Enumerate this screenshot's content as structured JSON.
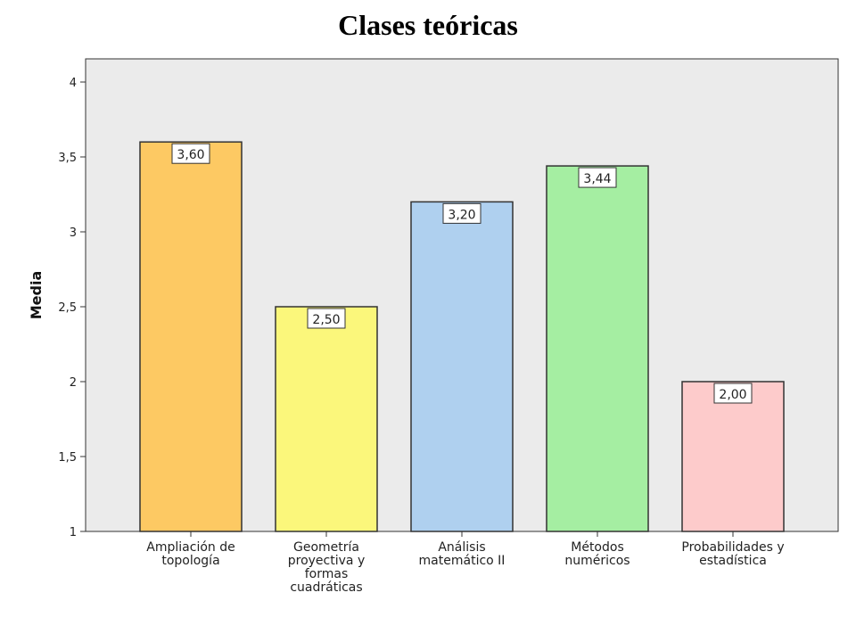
{
  "chart_data": {
    "type": "bar",
    "title": "Clases teóricas",
    "xlabel": "",
    "ylabel": "Media",
    "ylim": [
      1,
      4
    ],
    "yticks": [
      1,
      1.5,
      2,
      2.5,
      3,
      3.5,
      4
    ],
    "ytick_labels": [
      "1",
      "1,5",
      "2",
      "2,5",
      "3",
      "3,5",
      "4"
    ],
    "grid": false,
    "categories": [
      [
        "Ampliación de",
        "topología"
      ],
      [
        "Geometría",
        "proyectiva y",
        "formas",
        "cuadráticas"
      ],
      [
        "Análisis",
        "matemático II"
      ],
      [
        "Métodos",
        "numéricos"
      ],
      [
        "Probabilidades y",
        "estadística"
      ]
    ],
    "values": [
      3.6,
      2.5,
      3.2,
      3.44,
      2.0
    ],
    "value_labels": [
      "3,60",
      "2,50",
      "3,20",
      "3,44",
      "2,00"
    ],
    "colors": [
      "#fdc963",
      "#fbf77b",
      "#afd0ef",
      "#a5eea2",
      "#fdcbcb"
    ],
    "plot_background": "#ebebeb"
  }
}
